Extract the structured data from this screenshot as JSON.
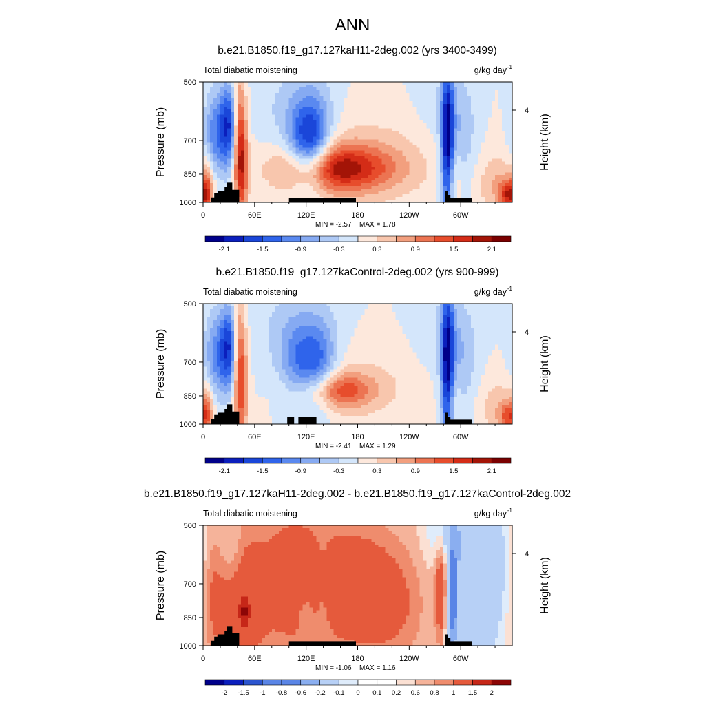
{
  "title": "ANN",
  "colors": {
    "land": "#000000",
    "blues": [
      "#00008a",
      "#0b1fbd",
      "#1a46d9",
      "#2f64eb",
      "#5a89f0",
      "#86aaf2",
      "#aec9f5",
      "#d4e6fb"
    ],
    "reds": [
      "#fde8dc",
      "#f8c6ad",
      "#f29f7e",
      "#ec7452",
      "#e74d2c",
      "#d42c17",
      "#a31407",
      "#7a0000"
    ],
    "diff_pos": [
      "#fbe0d3",
      "#f5b39a",
      "#ef8c6d",
      "#e55a3c",
      "#c62718",
      "#8c0606"
    ],
    "diff_neg": [
      "#dfecfb",
      "#b7d0f6",
      "#8aaef0",
      "#5a85e6",
      "#2c55cf",
      "#0b1d9c"
    ]
  },
  "chart_data": [
    {
      "type": "heatmap",
      "title": "b.e21.B1850.f19_g17.127kaH11-2deg.002 (yrs 3400-3499)",
      "left_label": "Total diabatic moistening",
      "units_prefix": "g/kg day",
      "units_exp": "-1",
      "ylabel": "Pressure (mb)",
      "y2label": "Height (km)",
      "y2ticks": [
        "4"
      ],
      "yticks": [
        "500",
        "700",
        "850",
        "1000"
      ],
      "xticks": [
        "0",
        "60E",
        "120E",
        "180",
        "120W",
        "60W"
      ],
      "ylim": [
        1000,
        500
      ],
      "xlim": [
        0,
        360
      ],
      "min_label": "MIN =  -2.57",
      "max_label": "MAX =   1.78",
      "colorbar_labels": [
        "-2.1",
        "-1.5",
        "-0.9",
        "-0.3",
        "0.3",
        "0.9",
        "1.5",
        "2.1"
      ],
      "features": [
        {
          "lon": 155,
          "p": 860,
          "w": 45,
          "h": 70,
          "v": 1.78
        },
        {
          "lon": 195,
          "p": 820,
          "w": 70,
          "h": 140,
          "v": 0.4
        },
        {
          "lon": 45,
          "p": 830,
          "w": 5,
          "h": 180,
          "v": 1.5
        },
        {
          "lon": 40,
          "p": 700,
          "w": 5,
          "h": 200,
          "v": 0.9
        },
        {
          "lon": 30,
          "p": 680,
          "w": 7,
          "h": 120,
          "v": -1.6
        },
        {
          "lon": 15,
          "p": 720,
          "w": 10,
          "h": 130,
          "v": -1.1
        },
        {
          "lon": 5,
          "p": 950,
          "w": 5,
          "h": 80,
          "v": 1.1
        },
        {
          "lon": 130,
          "p": 750,
          "w": 14,
          "h": 130,
          "v": -1.2
        },
        {
          "lon": 115,
          "p": 760,
          "w": 14,
          "h": 120,
          "v": -0.9
        },
        {
          "lon": 120,
          "p": 620,
          "w": 24,
          "h": 140,
          "v": -0.4
        },
        {
          "lon": 285,
          "p": 760,
          "w": 5,
          "h": 230,
          "v": -2.3
        },
        {
          "lon": 300,
          "p": 720,
          "w": 14,
          "h": 170,
          "v": -0.6
        },
        {
          "lon": 290,
          "p": 900,
          "w": 6,
          "h": 100,
          "v": 0.6
        },
        {
          "lon": 345,
          "p": 930,
          "w": 18,
          "h": 90,
          "v": 0.6
        },
        {
          "lon": 355,
          "p": 970,
          "w": 7,
          "h": 40,
          "v": 1.3
        },
        {
          "lon": 80,
          "p": 620,
          "w": 22,
          "h": 140,
          "v": -0.2
        },
        {
          "lon": 270,
          "p": 620,
          "w": 20,
          "h": 140,
          "v": -0.2
        }
      ],
      "terrain": [
        [
          9,
          0
        ],
        [
          9,
          0.33
        ],
        [
          13,
          0.33
        ],
        [
          13,
          0.6
        ],
        [
          17,
          0.6
        ],
        [
          17,
          0.75
        ],
        [
          25,
          0.75
        ],
        [
          25,
          1
        ],
        [
          28,
          1
        ],
        [
          28,
          1.3
        ],
        [
          34,
          1.3
        ],
        [
          34,
          0.83
        ],
        [
          42,
          0.83
        ],
        [
          42,
          0
        ],
        [
          100,
          0
        ],
        [
          100,
          0.3
        ],
        [
          178,
          0.3
        ],
        [
          178,
          0
        ],
        [
          282,
          0
        ],
        [
          282,
          0.75
        ],
        [
          285,
          0.75
        ],
        [
          285,
          0.5
        ],
        [
          288,
          0.5
        ],
        [
          288,
          0.3
        ],
        [
          313,
          0.3
        ],
        [
          313,
          0
        ]
      ]
    },
    {
      "type": "heatmap",
      "title": "b.e21.B1850.f19_g17.127kaControl-2deg.002 (yrs 900-999)",
      "left_label": "Total diabatic moistening",
      "units_prefix": "g/kg day",
      "units_exp": "-1",
      "ylabel": "Pressure (mb)",
      "y2label": "Height (km)",
      "y2ticks": [
        "4"
      ],
      "yticks": [
        "500",
        "700",
        "850",
        "1000"
      ],
      "xticks": [
        "0",
        "60E",
        "120E",
        "180",
        "120W",
        "60W"
      ],
      "ylim": [
        1000,
        500
      ],
      "xlim": [
        0,
        360
      ],
      "min_label": "MIN =  -2.41",
      "max_label": "MAX =   1.29",
      "colorbar_labels": [
        "-2.1",
        "-1.5",
        "-0.9",
        "-0.3",
        "0.3",
        "0.9",
        "1.5",
        "2.1"
      ],
      "features": [
        {
          "lon": 155,
          "p": 860,
          "w": 30,
          "h": 55,
          "v": 1.29
        },
        {
          "lon": 185,
          "p": 840,
          "w": 55,
          "h": 120,
          "v": 0.3
        },
        {
          "lon": 45,
          "p": 830,
          "w": 5,
          "h": 180,
          "v": 1.2
        },
        {
          "lon": 40,
          "p": 700,
          "w": 5,
          "h": 200,
          "v": 0.8
        },
        {
          "lon": 30,
          "p": 680,
          "w": 7,
          "h": 120,
          "v": -1.6
        },
        {
          "lon": 15,
          "p": 720,
          "w": 10,
          "h": 130,
          "v": -1.0
        },
        {
          "lon": 5,
          "p": 950,
          "w": 5,
          "h": 80,
          "v": 0.9
        },
        {
          "lon": 135,
          "p": 770,
          "w": 15,
          "h": 130,
          "v": -1.1
        },
        {
          "lon": 110,
          "p": 760,
          "w": 15,
          "h": 120,
          "v": -0.8
        },
        {
          "lon": 120,
          "p": 620,
          "w": 26,
          "h": 140,
          "v": -0.4
        },
        {
          "lon": 285,
          "p": 760,
          "w": 5,
          "h": 230,
          "v": -2.2
        },
        {
          "lon": 300,
          "p": 720,
          "w": 14,
          "h": 170,
          "v": -0.6
        },
        {
          "lon": 290,
          "p": 900,
          "w": 6,
          "h": 100,
          "v": 0.5
        },
        {
          "lon": 345,
          "p": 930,
          "w": 18,
          "h": 90,
          "v": 0.5
        },
        {
          "lon": 355,
          "p": 970,
          "w": 7,
          "h": 40,
          "v": 1.0
        },
        {
          "lon": 80,
          "p": 620,
          "w": 22,
          "h": 140,
          "v": -0.2
        },
        {
          "lon": 270,
          "p": 620,
          "w": 20,
          "h": 140,
          "v": -0.2
        }
      ],
      "terrain": [
        [
          9,
          0
        ],
        [
          9,
          0.33
        ],
        [
          13,
          0.33
        ],
        [
          13,
          0.6
        ],
        [
          17,
          0.6
        ],
        [
          17,
          0.75
        ],
        [
          25,
          0.75
        ],
        [
          25,
          1
        ],
        [
          28,
          1
        ],
        [
          28,
          1.3
        ],
        [
          34,
          1.3
        ],
        [
          34,
          0.83
        ],
        [
          42,
          0.83
        ],
        [
          42,
          0
        ],
        [
          98,
          0
        ],
        [
          98,
          0.5
        ],
        [
          106,
          0.5
        ],
        [
          106,
          0
        ],
        [
          111,
          0
        ],
        [
          111,
          0.5
        ],
        [
          132,
          0.5
        ],
        [
          132,
          0
        ],
        [
          282,
          0
        ],
        [
          282,
          0.75
        ],
        [
          285,
          0.75
        ],
        [
          285,
          0.5
        ],
        [
          288,
          0.5
        ],
        [
          288,
          0.3
        ],
        [
          313,
          0.3
        ],
        [
          313,
          0
        ]
      ]
    },
    {
      "type": "heatmap",
      "title": "b.e21.B1850.f19_g17.127kaH11-2deg.002 - b.e21.B1850.f19_g17.127kaControl-2deg.002",
      "left_label": "Total diabatic moistening",
      "units_prefix": "g/kg day",
      "units_exp": "-1",
      "ylabel": "Pressure (mb)",
      "y2label": "Height (km)",
      "y2ticks": [
        "4"
      ],
      "yticks": [
        "500",
        "700",
        "850",
        "1000"
      ],
      "xticks": [
        "0",
        "60E",
        "120E",
        "180",
        "120W",
        "60W"
      ],
      "ylim": [
        1000,
        500
      ],
      "xlim": [
        0,
        360
      ],
      "min_label": "MIN =  -1.06",
      "max_label": "MAX =   1.16",
      "colorbar_labels": [
        "-2",
        "-1.5",
        "-1",
        "-0.8",
        "-0.6",
        "-0.2",
        "-0.1",
        "0",
        "0.1",
        "0.2",
        "0.6",
        "0.8",
        "1",
        "1.5",
        "2"
      ],
      "features": [
        {
          "lon": 40,
          "p": 830,
          "w": 20,
          "h": 220,
          "v": 0.3
        },
        {
          "lon": 10,
          "p": 780,
          "w": 10,
          "h": 200,
          "v": 0.2
        },
        {
          "lon": 48,
          "p": 860,
          "w": 6,
          "h": 60,
          "v": 0.5
        },
        {
          "lon": 32,
          "p": 600,
          "w": 10,
          "h": 120,
          "v": -0.15
        },
        {
          "lon": 100,
          "p": 720,
          "w": 35,
          "h": 280,
          "v": 0.25
        },
        {
          "lon": 200,
          "p": 830,
          "w": 45,
          "h": 170,
          "v": 0.3
        },
        {
          "lon": 175,
          "p": 650,
          "w": 35,
          "h": 150,
          "v": 0.15
        },
        {
          "lon": 290,
          "p": 810,
          "w": 5,
          "h": 180,
          "v": -0.9
        },
        {
          "lon": 315,
          "p": 780,
          "w": 30,
          "h": 260,
          "v": -0.4
        },
        {
          "lon": 280,
          "p": 760,
          "w": 7,
          "h": 180,
          "v": 0.55
        },
        {
          "lon": 295,
          "p": 540,
          "w": 20,
          "h": 90,
          "v": -0.35
        },
        {
          "lon": 140,
          "p": 760,
          "w": 7,
          "h": 150,
          "v": -0.1
        },
        {
          "lon": 120,
          "p": 860,
          "w": 7,
          "h": 60,
          "v": -0.1
        },
        {
          "lon": 345,
          "p": 620,
          "w": 15,
          "h": 120,
          "v": -0.1
        }
      ],
      "terrain": [
        [
          9,
          0
        ],
        [
          9,
          0.33
        ],
        [
          13,
          0.33
        ],
        [
          13,
          0.6
        ],
        [
          17,
          0.6
        ],
        [
          17,
          0.75
        ],
        [
          25,
          0.75
        ],
        [
          25,
          1
        ],
        [
          28,
          1
        ],
        [
          28,
          1.3
        ],
        [
          34,
          1.3
        ],
        [
          34,
          0.83
        ],
        [
          42,
          0.83
        ],
        [
          42,
          0
        ],
        [
          100,
          0
        ],
        [
          100,
          0.3
        ],
        [
          178,
          0.3
        ],
        [
          178,
          0
        ],
        [
          282,
          0
        ],
        [
          282,
          0.75
        ],
        [
          285,
          0.75
        ],
        [
          285,
          0.5
        ],
        [
          288,
          0.5
        ],
        [
          288,
          0.3
        ],
        [
          313,
          0.3
        ],
        [
          313,
          0
        ]
      ]
    }
  ]
}
